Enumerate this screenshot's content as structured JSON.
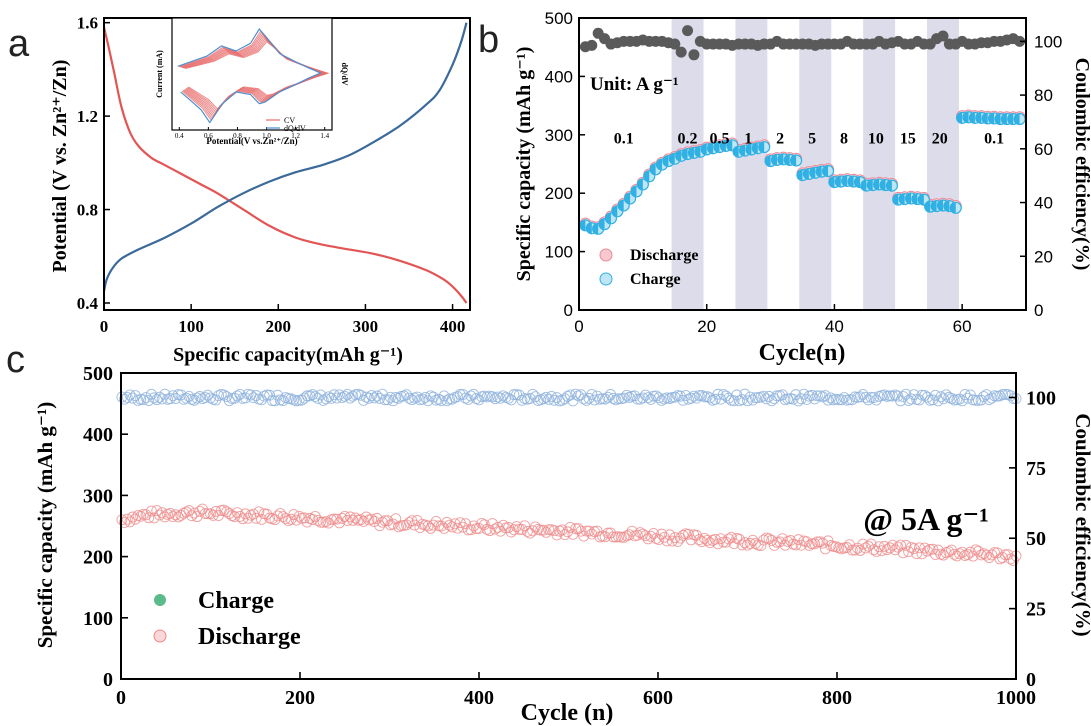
{
  "colors": {
    "red": "#e35555",
    "blue": "#3b6a9a",
    "cv_red": "#e86a6a",
    "cv_blue": "#4d8fcf",
    "dark": "#5a5a5a",
    "cyan": "#31b0e3",
    "pink": "#eb8a98",
    "band": "#dcdcea",
    "c_blue": "#8fb3dd",
    "c_pink": "#ef8a8a",
    "green": "#5dbb8a"
  },
  "panels": {
    "a": "a",
    "b": "b",
    "c": "c"
  },
  "chart_data": [
    {
      "id": "a",
      "type": "line",
      "xlabel": "Specific capacity(mAh g⁻¹)",
      "ylabel": "Potential (V vs. Zn²⁺/Zn)",
      "xlim": [
        0,
        420
      ],
      "ylim": [
        0.37,
        1.62
      ],
      "xticks": [
        0,
        100,
        200,
        300,
        400
      ],
      "yticks": [
        0.4,
        0.8,
        1.2,
        1.6
      ],
      "series": [
        {
          "key": "discharge",
          "color": "red",
          "x": [
            0,
            5,
            12,
            20,
            30,
            40,
            55,
            70,
            90,
            110,
            130,
            160,
            190,
            220,
            250,
            280,
            310,
            340,
            370,
            390,
            400,
            410,
            416
          ],
          "y": [
            1.58,
            1.5,
            1.38,
            1.24,
            1.13,
            1.07,
            1.02,
            0.99,
            0.95,
            0.91,
            0.87,
            0.8,
            0.73,
            0.68,
            0.65,
            0.63,
            0.61,
            0.58,
            0.54,
            0.5,
            0.47,
            0.43,
            0.4
          ]
        },
        {
          "key": "charge",
          "color": "blue",
          "x": [
            0,
            3,
            10,
            20,
            40,
            70,
            100,
            130,
            160,
            190,
            220,
            250,
            280,
            310,
            340,
            370,
            385,
            400,
            410,
            416
          ],
          "y": [
            0.45,
            0.5,
            0.55,
            0.59,
            0.63,
            0.68,
            0.74,
            0.81,
            0.87,
            0.92,
            0.96,
            0.99,
            1.03,
            1.09,
            1.16,
            1.25,
            1.31,
            1.42,
            1.52,
            1.6
          ]
        }
      ],
      "inset": {
        "xlabel": "Potential(V vs.Zn²⁺/Zn)",
        "ylabel_left": "Current (mA)",
        "ylabel_right": "dQ/dV",
        "xlim": [
          0.35,
          1.45
        ],
        "ylim": [
          -1.15,
          1.15
        ],
        "xticks": [
          0.4,
          0.6,
          0.8,
          1.0,
          1.2,
          1.4
        ],
        "legend": [
          "CV",
          "dQ/dV"
        ],
        "cv_upper": {
          "x": [
            0.4,
            0.5,
            0.6,
            0.7,
            0.8,
            0.9,
            0.96,
            1.0,
            1.1,
            1.2,
            1.3,
            1.38
          ],
          "y": [
            0.15,
            0.25,
            0.35,
            0.55,
            0.45,
            0.6,
            0.88,
            0.75,
            0.4,
            0.25,
            0.12,
            0.02
          ]
        },
        "cv_lower": {
          "x": [
            1.38,
            1.3,
            1.2,
            1.1,
            1.0,
            0.96,
            0.9,
            0.8,
            0.7,
            0.62,
            0.56,
            0.5,
            0.42
          ],
          "y": [
            0.02,
            -0.08,
            -0.22,
            -0.35,
            -0.55,
            -0.58,
            -0.4,
            -0.35,
            -0.6,
            -0.95,
            -0.7,
            -0.55,
            -0.35
          ]
        }
      }
    },
    {
      "id": "b",
      "type": "scatter",
      "xlabel": "Cycle(n)",
      "ylabel": "Specific capacity (mAh g⁻¹)",
      "ylabel_right": "Coulombic efficiency(%)",
      "xlim": [
        0,
        70
      ],
      "ylim": [
        0,
        500
      ],
      "ylim_right": [
        0,
        108.7
      ],
      "xticks": [
        0,
        20,
        40,
        60
      ],
      "yticks": [
        0,
        100,
        200,
        300,
        400,
        500
      ],
      "yticks_right": [
        0,
        20,
        40,
        60,
        80,
        100
      ],
      "unit_label": "Unit: A g⁻¹",
      "rate_labels": [
        {
          "text": "0.1",
          "x": 7,
          "y": 295
        },
        {
          "text": "0.2",
          "x": 17,
          "y": 295
        },
        {
          "text": "0.5",
          "x": 22,
          "y": 295
        },
        {
          "text": "1",
          "x": 26.5,
          "y": 295
        },
        {
          "text": "2",
          "x": 31.5,
          "y": 295
        },
        {
          "text": "5",
          "x": 36.5,
          "y": 295
        },
        {
          "text": "8",
          "x": 41.5,
          "y": 295
        },
        {
          "text": "10",
          "x": 46.5,
          "y": 295
        },
        {
          "text": "15",
          "x": 51.5,
          "y": 295
        },
        {
          "text": "20",
          "x": 56.5,
          "y": 295
        },
        {
          "text": "0.1",
          "x": 65,
          "y": 295
        }
      ],
      "bands": [
        [
          14.5,
          19.5
        ],
        [
          24.5,
          29.5
        ],
        [
          34.5,
          39.5
        ],
        [
          44.5,
          49.5
        ],
        [
          54.5,
          59.5
        ]
      ],
      "legend": [
        "Discharge",
        "Charge"
      ],
      "capacity_cycles": [
        1,
        2,
        3,
        4,
        5,
        6,
        7,
        8,
        9,
        10,
        11,
        12,
        13,
        14,
        15,
        16,
        17,
        18,
        19,
        20,
        21,
        22,
        23,
        24,
        25,
        26,
        27,
        28,
        29,
        30,
        31,
        32,
        33,
        34,
        35,
        36,
        37,
        38,
        39,
        40,
        41,
        42,
        43,
        44,
        45,
        46,
        47,
        48,
        49,
        50,
        51,
        52,
        53,
        54,
        55,
        56,
        57,
        58,
        59,
        60,
        61,
        62,
        63,
        64,
        65,
        66,
        67,
        68,
        69
      ],
      "discharge": [
        148,
        143,
        142,
        150,
        160,
        172,
        182,
        194,
        206,
        218,
        232,
        244,
        252,
        258,
        262,
        267,
        270,
        272,
        274,
        278,
        280,
        282,
        284,
        285,
        274,
        276,
        278,
        280,
        282,
        258,
        260,
        261,
        260,
        259,
        234,
        236,
        238,
        240,
        241,
        222,
        223,
        224,
        223,
        222,
        216,
        217,
        218,
        217,
        216,
        192,
        193,
        194,
        193,
        192,
        180,
        181,
        182,
        181,
        178,
        332,
        333,
        332,
        332,
        331,
        331,
        330,
        330,
        330,
        330
      ],
      "charge": [
        145,
        140,
        139,
        147,
        157,
        169,
        179,
        191,
        203,
        215,
        229,
        241,
        249,
        255,
        259,
        264,
        267,
        269,
        271,
        275,
        277,
        279,
        281,
        282,
        271,
        273,
        275,
        277,
        279,
        255,
        257,
        258,
        257,
        256,
        231,
        233,
        235,
        237,
        238,
        219,
        220,
        221,
        220,
        219,
        213,
        214,
        215,
        214,
        213,
        189,
        190,
        191,
        190,
        189,
        177,
        178,
        179,
        178,
        175,
        329,
        330,
        329,
        329,
        328,
        328,
        327,
        327,
        327,
        327
      ],
      "ce_cycles": [
        1,
        2,
        3,
        4,
        5,
        6,
        7,
        8,
        9,
        10,
        11,
        12,
        13,
        14,
        15,
        16,
        17,
        18,
        19,
        20,
        21,
        22,
        23,
        24,
        25,
        26,
        27,
        28,
        29,
        30,
        31,
        32,
        33,
        34,
        35,
        36,
        37,
        38,
        39,
        40,
        41,
        42,
        43,
        44,
        45,
        46,
        47,
        48,
        49,
        50,
        51,
        52,
        53,
        54,
        55,
        56,
        57,
        58,
        59,
        60,
        61,
        62,
        63,
        64,
        65,
        66,
        67,
        68,
        69
      ],
      "ce": [
        98,
        98.5,
        103,
        101,
        99,
        99.5,
        100,
        100,
        100,
        100.5,
        100,
        100,
        100,
        99.5,
        99,
        96,
        104,
        95,
        100,
        99,
        99,
        99,
        99,
        98.5,
        99,
        99,
        99,
        98.5,
        99,
        99,
        100,
        99,
        99,
        99,
        99,
        99,
        98.5,
        99,
        99,
        99,
        99,
        100,
        99,
        99,
        99,
        99,
        100,
        99,
        99.5,
        100,
        99,
        99,
        100,
        99,
        99,
        101,
        102,
        99,
        99,
        100,
        99,
        99,
        99.5,
        99.5,
        100,
        100,
        100.5,
        101,
        100
      ]
    },
    {
      "id": "c",
      "type": "scatter",
      "xlabel": "Cycle (n)",
      "ylabel": "Specific capacity (mAh g⁻¹)",
      "ylabel_right": "Coulombic efficiency(%)",
      "xlim": [
        0,
        1000
      ],
      "ylim": [
        0,
        500
      ],
      "ylim_right": [
        0,
        108.7
      ],
      "xticks": [
        0,
        200,
        400,
        600,
        800,
        1000
      ],
      "yticks": [
        0,
        100,
        200,
        300,
        400,
        500
      ],
      "yticks_right": [
        0,
        25,
        50,
        75,
        100
      ],
      "annotation": "@ 5A g⁻¹",
      "legend": [
        "Charge",
        "Discharge"
      ],
      "discharge_trend": {
        "x": [
          0,
          30,
          80,
          150,
          250,
          350,
          450,
          550,
          650,
          750,
          850,
          950,
          1000
        ],
        "y": [
          260,
          268,
          272,
          268,
          260,
          252,
          245,
          238,
          229,
          222,
          214,
          205,
          200
        ]
      },
      "ce_percent": 100,
      "n_points": 1000
    }
  ]
}
